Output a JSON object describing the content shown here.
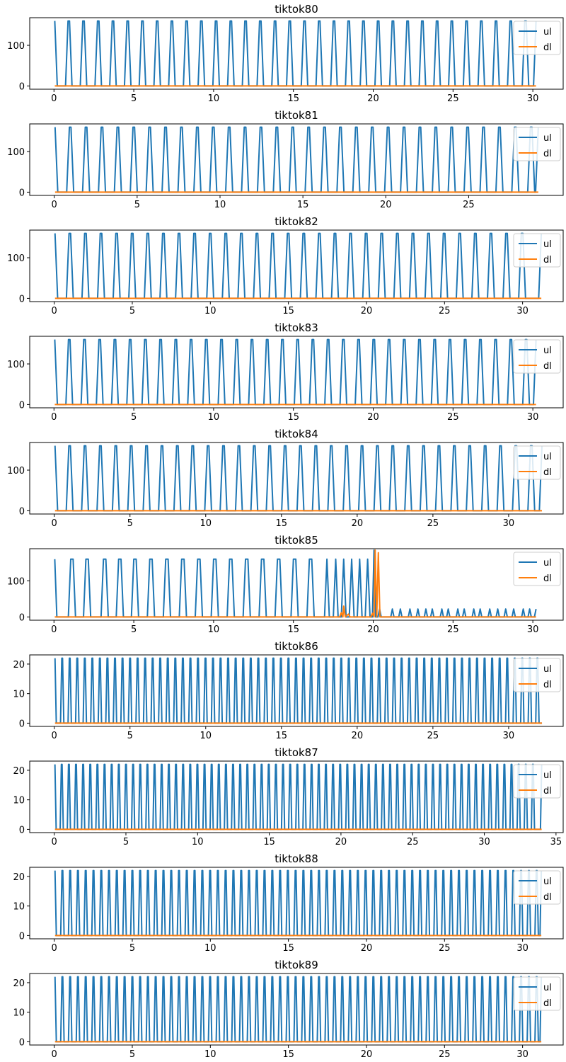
{
  "colors": {
    "ul": "#1f77b4",
    "dl": "#ff7f0e",
    "axes": "#000000",
    "background": "#ffffff",
    "legend_border": "#cccccc"
  },
  "chart_data": [
    {
      "type": "line",
      "title": "tiktok80",
      "xlim": [
        -1.52,
        31.9
      ],
      "ylim": [
        -8,
        168
      ],
      "xticks": [
        0,
        5,
        10,
        15,
        20,
        25,
        30
      ],
      "yticks": [
        0,
        100
      ],
      "legend": "top-right",
      "ul": {
        "name": "ul",
        "pattern": "spikes",
        "peak": 160,
        "period": 0.923,
        "offset": 0.0,
        "end": 30.2,
        "end_value": 160
      },
      "dl": {
        "name": "dl",
        "pattern": "flat",
        "end": 30.2
      }
    },
    {
      "type": "line",
      "title": "tiktok81",
      "xlim": [
        -1.48,
        30.7
      ],
      "ylim": [
        -8,
        168
      ],
      "xticks": [
        0,
        5,
        10,
        15,
        20,
        25
      ],
      "yticks": [
        0,
        100
      ],
      "legend": "top-right",
      "ul": {
        "name": "ul",
        "pattern": "spikes",
        "peak": 160,
        "period": 0.959,
        "offset": 0.0,
        "end": 29.2,
        "end_value": 160
      },
      "dl": {
        "name": "dl",
        "pattern": "flat",
        "end": 29.2
      }
    },
    {
      "type": "line",
      "title": "tiktok82",
      "xlim": [
        -1.57,
        32.6
      ],
      "ylim": [
        -8,
        168
      ],
      "xticks": [
        0,
        5,
        10,
        15,
        20,
        25,
        30
      ],
      "yticks": [
        0,
        100
      ],
      "legend": "top-right",
      "ul": {
        "name": "ul",
        "pattern": "spikes",
        "peak": 160,
        "period": 0.999,
        "offset": 0.0,
        "end": 31.2,
        "end_value": 160
      },
      "dl": {
        "name": "dl",
        "pattern": "flat",
        "end": 31.2
      }
    },
    {
      "type": "line",
      "title": "tiktok83",
      "xlim": [
        -1.52,
        31.9
      ],
      "ylim": [
        -8,
        168
      ],
      "xticks": [
        0,
        5,
        10,
        15,
        20,
        25,
        30
      ],
      "yticks": [
        0,
        100
      ],
      "legend": "top-right",
      "ul": {
        "name": "ul",
        "pattern": "spikes",
        "peak": 160,
        "period": 0.954,
        "offset": 0.0,
        "end": 30.2,
        "end_value": 160
      },
      "dl": {
        "name": "dl",
        "pattern": "flat",
        "end": 30.2
      }
    },
    {
      "type": "line",
      "title": "tiktok84",
      "xlim": [
        -1.62,
        33.6
      ],
      "ylim": [
        -8,
        168
      ],
      "xticks": [
        0,
        5,
        10,
        15,
        20,
        25,
        30
      ],
      "yticks": [
        0,
        100
      ],
      "legend": "top-right",
      "ul": {
        "name": "ul",
        "pattern": "spikes",
        "peak": 160,
        "period": 1.016,
        "offset": 0.0,
        "end": 32.2,
        "end_value": 160
      },
      "dl": {
        "name": "dl",
        "pattern": "flat",
        "end": 32.2
      }
    },
    {
      "type": "line",
      "title": "tiktok85",
      "xlim": [
        -1.52,
        31.9
      ],
      "ylim": [
        -9,
        189
      ],
      "xticks": [
        0,
        5,
        10,
        15,
        20,
        25,
        30
      ],
      "yticks": [
        0,
        100
      ],
      "legend": "top-right",
      "ul": {
        "name": "ul",
        "pattern": "points",
        "points": [
          [
            0.05,
            160
          ],
          [
            0.18,
            0
          ],
          [
            0.9,
            0
          ],
          [
            1.05,
            160
          ],
          [
            1.2,
            160
          ],
          [
            1.35,
            0
          ],
          [
            1.85,
            0
          ],
          [
            2.0,
            160
          ],
          [
            2.15,
            160
          ],
          [
            2.3,
            0
          ],
          [
            2.95,
            0
          ],
          [
            3.1,
            160
          ],
          [
            3.25,
            160
          ],
          [
            3.4,
            0
          ],
          [
            3.9,
            0
          ],
          [
            4.05,
            160
          ],
          [
            4.2,
            160
          ],
          [
            4.35,
            0
          ],
          [
            4.85,
            0
          ],
          [
            5.0,
            160
          ],
          [
            5.15,
            160
          ],
          [
            5.3,
            0
          ],
          [
            5.85,
            0
          ],
          [
            6.0,
            160
          ],
          [
            6.15,
            160
          ],
          [
            6.3,
            0
          ],
          [
            6.85,
            0
          ],
          [
            7.0,
            160
          ],
          [
            7.15,
            160
          ],
          [
            7.3,
            0
          ],
          [
            7.85,
            0
          ],
          [
            8.0,
            160
          ],
          [
            8.15,
            160
          ],
          [
            8.3,
            0
          ],
          [
            8.85,
            0
          ],
          [
            9.0,
            160
          ],
          [
            9.15,
            160
          ],
          [
            9.3,
            0
          ],
          [
            9.85,
            0
          ],
          [
            10.0,
            160
          ],
          [
            10.15,
            160
          ],
          [
            10.3,
            0
          ],
          [
            10.85,
            0
          ],
          [
            11.0,
            160
          ],
          [
            11.15,
            160
          ],
          [
            11.3,
            0
          ],
          [
            11.85,
            0
          ],
          [
            12.0,
            160
          ],
          [
            12.15,
            160
          ],
          [
            12.3,
            0
          ],
          [
            12.85,
            0
          ],
          [
            13.0,
            160
          ],
          [
            13.15,
            160
          ],
          [
            13.3,
            0
          ],
          [
            13.85,
            0
          ],
          [
            14.0,
            160
          ],
          [
            14.15,
            160
          ],
          [
            14.3,
            0
          ],
          [
            14.85,
            0
          ],
          [
            15.0,
            160
          ],
          [
            15.15,
            160
          ],
          [
            15.3,
            0
          ],
          [
            15.85,
            0
          ],
          [
            16.0,
            160
          ],
          [
            16.15,
            160
          ],
          [
            16.3,
            0
          ],
          [
            16.95,
            0
          ],
          [
            17.1,
            160
          ],
          [
            17.25,
            0
          ],
          [
            17.5,
            0
          ],
          [
            17.65,
            160
          ],
          [
            17.8,
            0
          ],
          [
            18.0,
            0
          ],
          [
            18.15,
            160
          ],
          [
            18.3,
            0
          ],
          [
            18.5,
            0
          ],
          [
            18.65,
            160
          ],
          [
            18.8,
            0
          ],
          [
            19.0,
            0
          ],
          [
            19.15,
            160
          ],
          [
            19.3,
            0
          ],
          [
            19.5,
            0
          ],
          [
            19.65,
            160
          ],
          [
            19.8,
            0
          ],
          [
            19.95,
            0
          ],
          [
            20.05,
            185
          ],
          [
            20.15,
            0
          ],
          [
            20.3,
            0
          ],
          [
            20.4,
            22
          ],
          [
            20.5,
            0
          ],
          [
            21.1,
            0
          ],
          [
            21.2,
            22
          ],
          [
            21.3,
            0
          ],
          [
            21.6,
            0
          ],
          [
            21.7,
            22
          ],
          [
            21.8,
            0
          ],
          [
            22.2,
            0
          ],
          [
            22.3,
            22
          ],
          [
            22.4,
            0
          ],
          [
            22.7,
            0
          ],
          [
            22.8,
            22
          ],
          [
            22.9,
            0
          ],
          [
            23.2,
            0
          ],
          [
            23.3,
            22
          ],
          [
            23.4,
            0
          ],
          [
            23.6,
            0
          ],
          [
            23.7,
            22
          ],
          [
            23.8,
            0
          ],
          [
            24.2,
            0
          ],
          [
            24.3,
            22
          ],
          [
            24.4,
            0
          ],
          [
            24.6,
            0
          ],
          [
            24.7,
            22
          ],
          [
            24.8,
            0
          ],
          [
            25.2,
            0
          ],
          [
            25.3,
            22
          ],
          [
            25.4,
            0
          ],
          [
            25.6,
            0
          ],
          [
            25.7,
            22
          ],
          [
            25.8,
            0
          ],
          [
            26.2,
            0
          ],
          [
            26.3,
            22
          ],
          [
            26.4,
            0
          ],
          [
            26.6,
            0
          ],
          [
            26.7,
            22
          ],
          [
            26.8,
            0
          ],
          [
            27.2,
            0
          ],
          [
            27.3,
            22
          ],
          [
            27.4,
            0
          ],
          [
            27.7,
            0
          ],
          [
            27.8,
            22
          ],
          [
            27.9,
            0
          ],
          [
            28.2,
            0
          ],
          [
            28.3,
            22
          ],
          [
            28.4,
            0
          ],
          [
            28.7,
            0
          ],
          [
            28.8,
            22
          ],
          [
            28.9,
            0
          ],
          [
            29.3,
            0
          ],
          [
            29.4,
            22
          ],
          [
            29.5,
            0
          ],
          [
            29.7,
            0
          ],
          [
            29.8,
            22
          ],
          [
            29.9,
            0
          ],
          [
            30.1,
            0
          ],
          [
            30.2,
            22
          ]
        ]
      },
      "dl": {
        "name": "dl",
        "pattern": "points",
        "points": [
          [
            0.05,
            0
          ],
          [
            17.9,
            0
          ],
          [
            18.0,
            12
          ],
          [
            18.1,
            0
          ],
          [
            18.15,
            30
          ],
          [
            18.25,
            0
          ],
          [
            18.45,
            8
          ],
          [
            18.55,
            0
          ],
          [
            19.85,
            0
          ],
          [
            19.95,
            10
          ],
          [
            20.05,
            0
          ],
          [
            20.12,
            185
          ],
          [
            20.22,
            0
          ],
          [
            20.32,
            178
          ],
          [
            20.42,
            0
          ],
          [
            30.2,
            0
          ]
        ]
      }
    },
    {
      "type": "line",
      "title": "tiktok86",
      "xlim": [
        -1.62,
        33.6
      ],
      "ylim": [
        -1.1,
        23.1
      ],
      "xticks": [
        0,
        5,
        10,
        15,
        20,
        25,
        30
      ],
      "yticks": [
        0,
        10,
        20
      ],
      "legend": "top-right",
      "ul": {
        "name": "ul",
        "pattern": "spikes",
        "peak": 22,
        "period": 0.498,
        "offset": 0.05,
        "end": 32.2,
        "end_value": 0
      },
      "dl": {
        "name": "dl",
        "pattern": "flat",
        "end": 32.2
      }
    },
    {
      "type": "line",
      "title": "tiktok87",
      "xlim": [
        -1.71,
        35.5
      ],
      "ylim": [
        -1.1,
        23.1
      ],
      "xticks": [
        0,
        5,
        10,
        15,
        20,
        25,
        30,
        35
      ],
      "yticks": [
        0,
        10,
        20
      ],
      "legend": "top-right",
      "ul": {
        "name": "ul",
        "pattern": "spikes",
        "peak": 22,
        "period": 0.498,
        "offset": 0.05,
        "end": 34.0,
        "end_value": 22
      },
      "dl": {
        "name": "dl",
        "pattern": "flat",
        "end": 34.0
      }
    },
    {
      "type": "line",
      "title": "tiktok88",
      "xlim": [
        -1.57,
        32.6
      ],
      "ylim": [
        -1.1,
        23.1
      ],
      "xticks": [
        0,
        5,
        10,
        15,
        20,
        25,
        30
      ],
      "yticks": [
        0,
        10,
        20
      ],
      "legend": "top-right",
      "ul": {
        "name": "ul",
        "pattern": "spikes",
        "peak": 22,
        "period": 0.498,
        "offset": 0.05,
        "end": 31.2,
        "end_value": 22
      },
      "dl": {
        "name": "dl",
        "pattern": "flat",
        "end": 31.2
      }
    },
    {
      "type": "line",
      "title": "tiktok89",
      "xlim": [
        -1.57,
        32.6
      ],
      "ylim": [
        -1.1,
        23.1
      ],
      "xticks": [
        0,
        5,
        10,
        15,
        20,
        25,
        30
      ],
      "yticks": [
        0,
        10,
        20
      ],
      "legend": "top-right",
      "ul": {
        "name": "ul",
        "pattern": "spikes",
        "peak": 22,
        "period": 0.498,
        "offset": 0.05,
        "end": 31.2,
        "end_value": 22
      },
      "dl": {
        "name": "dl",
        "pattern": "flat",
        "end": 31.2
      }
    }
  ]
}
